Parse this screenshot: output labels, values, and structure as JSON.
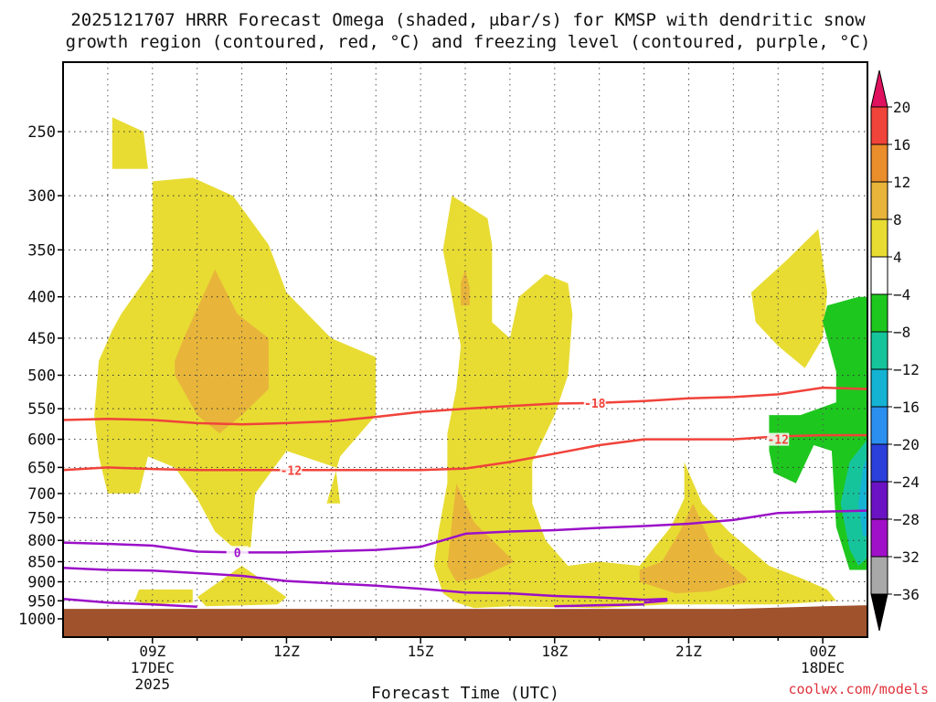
{
  "chart_data": {
    "type": "contour",
    "title_line1": "2025121707 HRRR Forecast Omega (shaded, μbar/s) for KMSP with dendritic snow",
    "title_line2": "growth region (contoured, red, °C) and freezing level (contoured, purple, °C)",
    "xlabel": "Forecast Time (UTC)",
    "xlim": [
      7,
      25
    ],
    "ylim": [
      1000,
      200
    ],
    "y_scale": "log-pressure",
    "y_ticks": [
      250,
      300,
      350,
      400,
      450,
      500,
      550,
      600,
      650,
      700,
      750,
      800,
      850,
      900,
      950,
      1000
    ],
    "x_ticks": [
      {
        "x": 9,
        "lines": [
          "09Z",
          "17DEC",
          "2025"
        ]
      },
      {
        "x": 12,
        "lines": [
          "12Z"
        ]
      },
      {
        "x": 15,
        "lines": [
          "15Z"
        ]
      },
      {
        "x": 18,
        "lines": [
          "18Z"
        ]
      },
      {
        "x": 21,
        "lines": [
          "21Z"
        ]
      },
      {
        "x": 24,
        "lines": [
          "00Z",
          "18DEC"
        ]
      }
    ],
    "colorbar": {
      "units": "μbar/s",
      "levels": [
        20,
        16,
        12,
        8,
        4,
        -4,
        -8,
        -12,
        -16,
        -20,
        -24,
        -28,
        -32,
        -36
      ],
      "colors": [
        "#e0115f",
        "#f0433a",
        "#ea8d2b",
        "#e8b53a",
        "#e8dc33",
        "#ffffff",
        "#1ec71e",
        "#16c49c",
        "#14b3d4",
        "#2b8fef",
        "#2b3fdb",
        "#6a12c4",
        "#a010c8",
        "#a8a8a8",
        "#000000"
      ]
    },
    "omega_regions": [
      {
        "class": "4 to 8",
        "color": "#e8dc33",
        "vertices": [
          [
            8.1,
            240
          ],
          [
            8.8,
            250
          ],
          [
            8.9,
            278
          ],
          [
            8.1,
            278
          ]
        ]
      },
      {
        "class": "4 to 8",
        "color": "#e8dc33",
        "vertices": [
          [
            9.0,
            288
          ],
          [
            9.9,
            285
          ],
          [
            10.8,
            300
          ],
          [
            11.6,
            345
          ],
          [
            12.0,
            395
          ],
          [
            13.0,
            450
          ],
          [
            14.0,
            475
          ],
          [
            14.0,
            560
          ],
          [
            13.2,
            630
          ],
          [
            12.9,
            720
          ],
          [
            13.2,
            720
          ],
          [
            13.1,
            650
          ],
          [
            12.0,
            620
          ],
          [
            11.3,
            700
          ],
          [
            11.2,
            815
          ],
          [
            10.9,
            825
          ],
          [
            10.4,
            780
          ],
          [
            10.0,
            710
          ],
          [
            9.5,
            650
          ],
          [
            8.9,
            630
          ],
          [
            8.7,
            700
          ],
          [
            8.0,
            700
          ],
          [
            7.8,
            630
          ],
          [
            7.7,
            560
          ],
          [
            7.8,
            480
          ],
          [
            8.1,
            440
          ],
          [
            8.3,
            420
          ],
          [
            9.0,
            370
          ],
          [
            9.0,
            320
          ]
        ]
      },
      {
        "class": "4 to 8",
        "color": "#e8dc33",
        "vertices": [
          [
            8.7,
            920
          ],
          [
            9.9,
            920
          ],
          [
            9.9,
            955
          ],
          [
            8.9,
            960
          ],
          [
            8.6,
            950
          ]
        ]
      },
      {
        "class": "4 to 8",
        "color": "#e8dc33",
        "vertices": [
          [
            10.0,
            940
          ],
          [
            11.0,
            860
          ],
          [
            12.0,
            940
          ],
          [
            11.8,
            960
          ],
          [
            10.2,
            965
          ]
        ]
      },
      {
        "class": "4 to 8",
        "color": "#e8dc33",
        "vertices": [
          [
            15.7,
            300
          ],
          [
            16.5,
            320
          ],
          [
            16.6,
            345
          ],
          [
            16.6,
            430
          ],
          [
            17.0,
            450
          ],
          [
            17.2,
            400
          ],
          [
            17.8,
            375
          ],
          [
            18.3,
            385
          ],
          [
            18.4,
            420
          ],
          [
            18.3,
            500
          ],
          [
            18.0,
            560
          ],
          [
            17.5,
            640
          ],
          [
            17.5,
            720
          ],
          [
            17.8,
            800
          ],
          [
            18.3,
            860
          ],
          [
            19.0,
            850
          ],
          [
            19.9,
            860
          ],
          [
            20.6,
            770
          ],
          [
            20.9,
            710
          ],
          [
            20.9,
            640
          ],
          [
            21.3,
            720
          ],
          [
            21.9,
            780
          ],
          [
            22.8,
            860
          ],
          [
            23.5,
            890
          ],
          [
            24.1,
            920
          ],
          [
            24.3,
            950
          ],
          [
            23.0,
            960
          ],
          [
            20.5,
            960
          ],
          [
            19.0,
            970
          ],
          [
            17.0,
            965
          ],
          [
            16.2,
            970
          ],
          [
            15.8,
            955
          ],
          [
            15.5,
            930
          ],
          [
            15.3,
            860
          ],
          [
            15.4,
            780
          ],
          [
            15.6,
            680
          ],
          [
            15.6,
            590
          ],
          [
            15.8,
            520
          ],
          [
            15.9,
            460
          ],
          [
            15.7,
            400
          ],
          [
            15.5,
            350
          ]
        ]
      },
      {
        "class": "4 to 8",
        "color": "#e8dc33",
        "vertices": [
          [
            22.4,
            395
          ],
          [
            23.2,
            360
          ],
          [
            23.9,
            330
          ],
          [
            24.1,
            395
          ],
          [
            24.0,
            450
          ],
          [
            23.6,
            490
          ],
          [
            23.0,
            460
          ],
          [
            22.5,
            430
          ]
        ]
      },
      {
        "class": "8 to 12",
        "color": "#e8b53a",
        "vertices": [
          [
            9.7,
            450
          ],
          [
            10.4,
            370
          ],
          [
            10.9,
            420
          ],
          [
            11.6,
            450
          ],
          [
            11.6,
            520
          ],
          [
            11.0,
            560
          ],
          [
            10.5,
            590
          ],
          [
            10.0,
            560
          ],
          [
            9.5,
            500
          ],
          [
            9.5,
            480
          ]
        ]
      },
      {
        "class": "8 to 12",
        "color": "#e8b53a",
        "vertices": [
          [
            15.9,
            385
          ],
          [
            16.0,
            370
          ],
          [
            16.1,
            390
          ],
          [
            16.1,
            410
          ],
          [
            15.9,
            410
          ]
        ]
      },
      {
        "class": "8 to 12",
        "color": "#e8b53a",
        "vertices": [
          [
            15.7,
            760
          ],
          [
            15.8,
            680
          ],
          [
            16.2,
            760
          ],
          [
            17.1,
            850
          ],
          [
            16.3,
            890
          ],
          [
            15.8,
            900
          ],
          [
            15.6,
            860
          ]
        ]
      },
      {
        "class": "8 to 12",
        "color": "#e8b53a",
        "vertices": [
          [
            19.9,
            870
          ],
          [
            20.4,
            850
          ],
          [
            20.8,
            780
          ],
          [
            21.1,
            720
          ],
          [
            21.6,
            830
          ],
          [
            22.3,
            890
          ],
          [
            22.3,
            900
          ],
          [
            21.5,
            925
          ],
          [
            20.7,
            930
          ],
          [
            19.9,
            900
          ]
        ]
      },
      {
        "class": "-4 to -8",
        "color": "#1ec71e",
        "vertices": [
          [
            22.8,
            560
          ],
          [
            23.5,
            560
          ],
          [
            24.3,
            540
          ],
          [
            24.3,
            495
          ],
          [
            24.0,
            430
          ],
          [
            24.1,
            410
          ],
          [
            24.8,
            400
          ],
          [
            25.0,
            400
          ],
          [
            25.0,
            870
          ],
          [
            24.6,
            870
          ],
          [
            24.3,
            770
          ],
          [
            24.2,
            620
          ],
          [
            23.8,
            610
          ],
          [
            23.4,
            680
          ],
          [
            22.9,
            660
          ],
          [
            22.8,
            620
          ]
        ]
      },
      {
        "class": "-8 to -12",
        "color": "#16c49c",
        "vertices": [
          [
            24.6,
            640
          ],
          [
            25.0,
            600
          ],
          [
            25.0,
            840
          ],
          [
            24.8,
            860
          ],
          [
            24.6,
            820
          ],
          [
            24.4,
            720
          ]
        ]
      },
      {
        "class": "-12 to -16",
        "color": "#14b3d4",
        "vertices": [
          [
            24.9,
            650
          ],
          [
            25.0,
            630
          ],
          [
            25.0,
            790
          ],
          [
            24.9,
            790
          ],
          [
            24.8,
            720
          ]
        ]
      }
    ],
    "dgz_contours": [
      {
        "label": "-18",
        "label_at": 18.9,
        "color": "#f0433a",
        "points": [
          [
            7,
            568
          ],
          [
            8,
            566
          ],
          [
            9,
            568
          ],
          [
            10,
            573
          ],
          [
            11,
            575
          ],
          [
            12,
            573
          ],
          [
            13,
            570
          ],
          [
            14,
            563
          ],
          [
            15,
            555
          ],
          [
            16,
            550
          ],
          [
            17,
            546
          ],
          [
            18,
            542
          ],
          [
            19,
            541
          ],
          [
            20,
            538
          ],
          [
            21,
            534
          ],
          [
            22,
            532
          ],
          [
            23,
            528
          ],
          [
            24,
            518
          ],
          [
            25,
            520
          ]
        ]
      },
      {
        "label": "-12",
        "label_at": 12.1,
        "color": "#f0433a",
        "points": [
          [
            7,
            655
          ],
          [
            8,
            650
          ],
          [
            9,
            653
          ],
          [
            10,
            655
          ],
          [
            11,
            655
          ],
          [
            12,
            655
          ],
          [
            13,
            655
          ],
          [
            14,
            655
          ],
          [
            15,
            655
          ],
          [
            16,
            652
          ],
          [
            17,
            640
          ],
          [
            18,
            625
          ],
          [
            19,
            610
          ],
          [
            20,
            600
          ],
          [
            21,
            600
          ],
          [
            22,
            600
          ],
          [
            23,
            595
          ],
          [
            24,
            593
          ],
          [
            25,
            593
          ]
        ]
      },
      {
        "label": "-12",
        "label_at": 23.0,
        "color": "#f0433a",
        "points": [
          [
            22.8,
            601
          ],
          [
            23.0,
            600
          ]
        ]
      }
    ],
    "freezing_contours": [
      {
        "label": "0",
        "label_at": 10.9,
        "color": "#9b10c8",
        "points": [
          [
            7,
            805
          ],
          [
            8,
            808
          ],
          [
            9,
            812
          ],
          [
            10,
            826
          ],
          [
            11,
            828
          ],
          [
            12,
            828
          ],
          [
            13,
            825
          ],
          [
            14,
            822
          ],
          [
            15,
            815
          ],
          [
            16,
            785
          ],
          [
            17,
            780
          ],
          [
            18,
            777
          ],
          [
            19,
            772
          ],
          [
            20,
            768
          ],
          [
            21,
            763
          ],
          [
            22,
            755
          ],
          [
            23,
            740
          ],
          [
            24,
            737
          ],
          [
            25,
            735
          ]
        ]
      },
      {
        "label": "",
        "label_at": null,
        "color": "#9b10c8",
        "points": [
          [
            7,
            865
          ],
          [
            8,
            870
          ],
          [
            9,
            872
          ],
          [
            10,
            878
          ],
          [
            11,
            885
          ],
          [
            12,
            898
          ],
          [
            13,
            904
          ],
          [
            14,
            910
          ],
          [
            15,
            918
          ],
          [
            16,
            928
          ],
          [
            17,
            930
          ],
          [
            18,
            937
          ],
          [
            19,
            941
          ],
          [
            20,
            947
          ],
          [
            20.5,
            945
          ],
          [
            20.5,
            950
          ],
          [
            20,
            955
          ]
        ]
      },
      {
        "label": "",
        "label_at": null,
        "color": "#9b10c8",
        "points": [
          [
            7,
            945
          ],
          [
            8,
            955
          ],
          [
            9,
            960
          ],
          [
            10,
            966
          ]
        ]
      },
      {
        "label": "",
        "label_at": null,
        "color": "#9b10c8",
        "points": [
          [
            18.0,
            965
          ],
          [
            19.0,
            962
          ],
          [
            20.0,
            960
          ]
        ]
      }
    ],
    "terrain": {
      "label": "below ground",
      "color": "#a0522d",
      "points": [
        [
          7,
          972
        ],
        [
          22,
          972
        ],
        [
          24,
          965
        ],
        [
          25,
          962
        ]
      ]
    }
  },
  "credit": "coolwx.com/models"
}
